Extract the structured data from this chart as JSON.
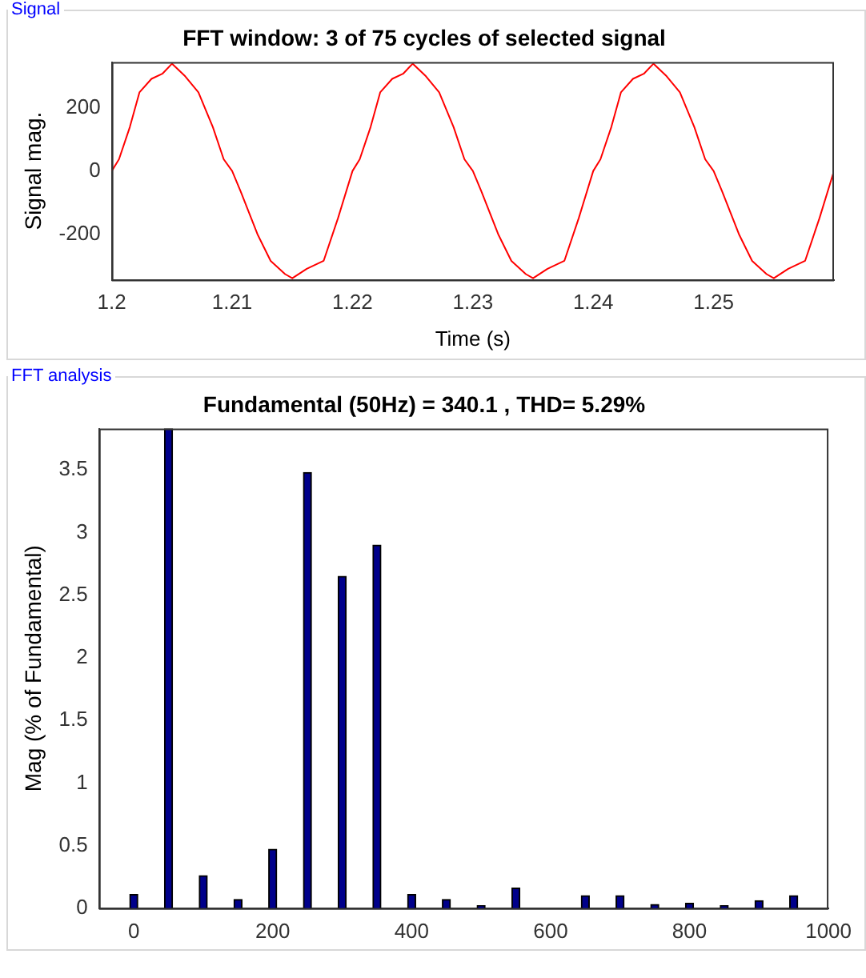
{
  "chart_data": [
    {
      "type": "line",
      "title": "FFT window: 3 of 75 cycles of selected signal",
      "xlabel": "Time (s)",
      "ylabel": "Signal mag.",
      "annotations": [
        "Signal"
      ],
      "x": [
        1.2,
        1.2006,
        1.2015,
        1.2023,
        1.2033,
        1.2042,
        1.205,
        1.2061,
        1.2072,
        1.2084,
        1.2093,
        1.21,
        1.2107,
        1.2121,
        1.2132,
        1.2144,
        1.215,
        1.2162,
        1.2176,
        1.2188,
        1.22,
        1.2206,
        1.2215,
        1.2223,
        1.2233,
        1.2242,
        1.225,
        1.2261,
        1.2272,
        1.2284,
        1.2293,
        1.23,
        1.2307,
        1.2321,
        1.2332,
        1.2344,
        1.235,
        1.2362,
        1.2376,
        1.2388,
        1.24,
        1.2406,
        1.2415,
        1.2423,
        1.2433,
        1.2442,
        1.245,
        1.2461,
        1.2472,
        1.2484,
        1.2493,
        1.25,
        1.2507,
        1.2521,
        1.2532,
        1.2544,
        1.255,
        1.2562,
        1.2576,
        1.2588,
        1.26
      ],
      "series": [
        {
          "color": "#ff0000",
          "values": [
            0,
            37,
            139,
            249,
            292,
            308,
            340,
            300,
            249,
            139,
            37,
            0,
            -64,
            -200,
            -285,
            -327,
            -340,
            -310,
            -285,
            -149,
            0,
            37,
            139,
            249,
            292,
            308,
            340,
            300,
            249,
            139,
            37,
            0,
            -64,
            -200,
            -285,
            -327,
            -340,
            -310,
            -285,
            -149,
            0,
            37,
            139,
            249,
            292,
            308,
            340,
            300,
            249,
            139,
            37,
            0,
            -64,
            -200,
            -285,
            -327,
            -340,
            -310,
            -285,
            -149,
            0
          ]
        }
      ],
      "xlim": [
        1.2,
        1.26
      ],
      "xticks": [
        1.2,
        1.21,
        1.22,
        1.23,
        1.24,
        1.25
      ],
      "ylim": [
        -345,
        345
      ],
      "yticks": [
        -200,
        0,
        200
      ],
      "grid": false,
      "legend": false,
      "marker": "none",
      "line_style": "solid"
    },
    {
      "type": "bar",
      "title": "Fundamental (50Hz) = 340.1 , THD= 5.29%",
      "ylabel": "Mag (% of Fundamental)",
      "annotations": [
        "FFT analysis"
      ],
      "x": [
        0,
        50,
        100,
        150,
        200,
        250,
        300,
        350,
        400,
        450,
        500,
        550,
        600,
        650,
        700,
        750,
        800,
        850,
        900,
        950
      ],
      "values": [
        0.11,
        3.83,
        0.26,
        0.07,
        0.47,
        3.48,
        2.65,
        2.9,
        0.11,
        0.07,
        0.02,
        0.16,
        0,
        0.1,
        0.1,
        0.03,
        0.04,
        0.02,
        0.06,
        0.1
      ],
      "color": "#00008b",
      "xlim": [
        -50,
        1000
      ],
      "xticks": [
        0,
        200,
        400,
        600,
        800,
        1000
      ],
      "ylim": [
        0,
        3.83
      ],
      "yticks": [
        0,
        0.5,
        1,
        1.5,
        2,
        2.5,
        3,
        3.5
      ],
      "grid": false,
      "legend": false
    }
  ]
}
